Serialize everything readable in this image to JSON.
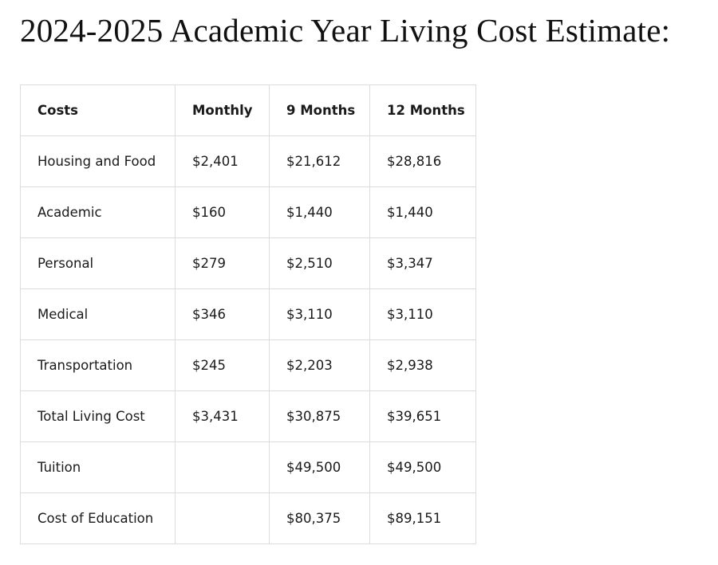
{
  "title": "2024-2025 Academic Year Living Cost Estimate:",
  "table": {
    "header": [
      "Costs",
      "Monthly",
      "9 Months",
      "12 Months"
    ],
    "rows": [
      [
        "Housing and Food",
        "$2,401",
        "$21,612",
        "$28,816"
      ],
      [
        "Academic",
        "$160",
        "$1,440",
        "$1,440"
      ],
      [
        "Personal",
        "$279",
        "$2,510",
        "$3,347"
      ],
      [
        "Medical",
        "$346",
        "$3,110",
        "$3,110"
      ],
      [
        "Transportation",
        "$245",
        "$2,203",
        "$2,938"
      ],
      [
        "Total Living Cost",
        "$3,431",
        "$30,875",
        "$39,651"
      ],
      [
        "Tuition",
        null,
        "$49,500",
        "$49,500"
      ],
      [
        "Cost of Education",
        null,
        "$80,375",
        "$89,151"
      ]
    ]
  }
}
